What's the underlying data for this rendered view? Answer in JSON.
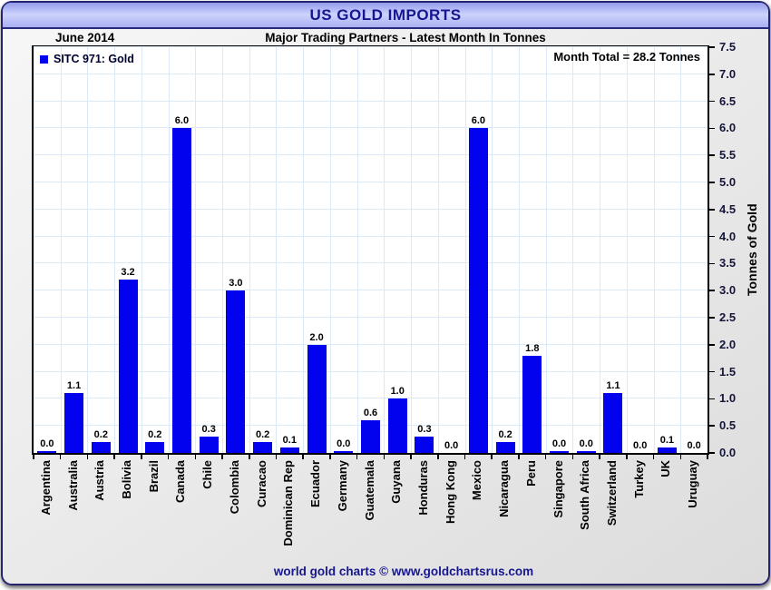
{
  "window": {
    "title": "US GOLD IMPORTS"
  },
  "header": {
    "period": "June 2014",
    "subtitle": "Major Trading Partners - Latest Month In Tonnes"
  },
  "chart_data": {
    "type": "bar",
    "title": "US GOLD IMPORTS",
    "subtitle": "Major Trading Partners - Latest Month In Tonnes",
    "period_label": "June 2014",
    "legend": {
      "label": "SITC 971: Gold",
      "position": "top-left"
    },
    "annotation": "Month Total = 28.2 Tonnes",
    "ylabel": "Tonnes of Gold",
    "ylim": [
      0,
      7.5
    ],
    "ytick_step": 0.5,
    "grid": true,
    "categories": [
      "Argentina",
      "Australia",
      "Austria",
      "Bolivia",
      "Brazil",
      "Canada",
      "Chile",
      "Colombia",
      "Curacao",
      "Dominican Rep",
      "Ecuador",
      "Germany",
      "Guatemala",
      "Guyana",
      "Honduras",
      "Hong Kong",
      "Mexico",
      "Nicaragua",
      "Peru",
      "Singapore",
      "South Africa",
      "Switzerland",
      "Turkey",
      "UK",
      "Uruguay"
    ],
    "values": [
      0,
      1.1,
      0.2,
      3.2,
      0.2,
      6.0,
      0.3,
      3.0,
      0.2,
      0.1,
      2.0,
      0,
      0.6,
      1.0,
      0.3,
      0,
      6.0,
      0.2,
      1.8,
      0,
      0,
      1.1,
      0,
      0.1,
      0
    ],
    "value_labels": [
      "0.0",
      "1.1",
      "0.2",
      "3.2",
      "0.2",
      "6.0",
      "0.3",
      "3.0",
      "0.2",
      "0.1",
      "2.0",
      "0.0",
      "0.6",
      "1.0",
      "0.3",
      "0.0",
      "6.0",
      "0.2",
      "1.8",
      "0.0",
      "0.0",
      "1.1",
      "0.0",
      "0.1",
      "0.0"
    ],
    "trace_bars": [
      true,
      false,
      false,
      false,
      false,
      false,
      false,
      false,
      false,
      false,
      false,
      true,
      false,
      false,
      false,
      false,
      false,
      false,
      false,
      true,
      true,
      false,
      false,
      false,
      false
    ]
  },
  "footer": {
    "credit": "world gold charts © www.goldchartsrus.com"
  },
  "colors": {
    "bar": "#0202ef",
    "legend_swatch": "#0000ee",
    "title_navy": "#16168f",
    "grid": "#dce9f6",
    "plot_border": "#000000",
    "card_border": "#23236e",
    "band_top": "#939ced",
    "band_mid": "#cdd2fb",
    "band_bottom": "#a9b0f3"
  }
}
